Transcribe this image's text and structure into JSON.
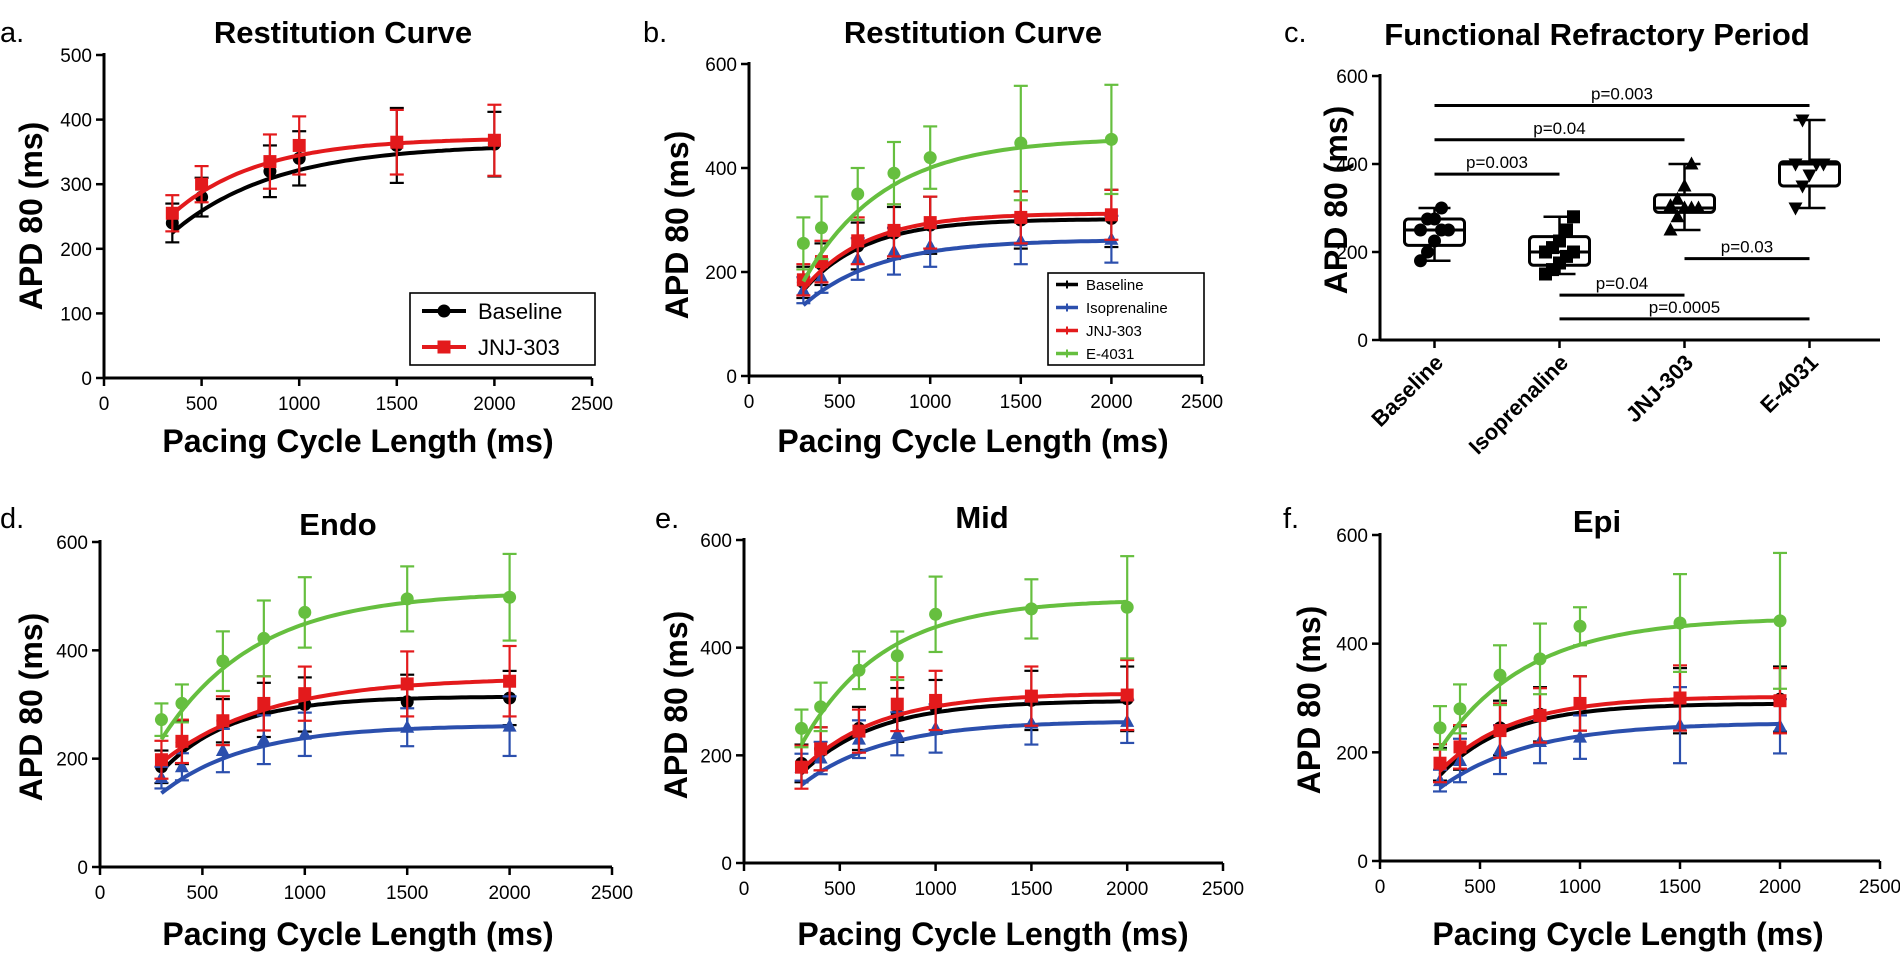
{
  "chart_data": [
    {
      "id": "a",
      "panel_label": "a.",
      "type": "line",
      "title": "Restitution Curve",
      "xlabel": "Pacing Cycle Length (ms)",
      "ylabel": "APD 80 (ms)",
      "xlim": [
        0,
        2500
      ],
      "ylim": [
        0,
        500
      ],
      "xticks": [
        0,
        500,
        1000,
        1500,
        2000,
        2500
      ],
      "yticks": [
        0,
        100,
        200,
        300,
        400,
        500
      ],
      "legend": "bottom-right",
      "series": [
        {
          "name": "Baseline",
          "color": "#000000",
          "marker": "circle",
          "x": [
            350,
            500,
            850,
            1000,
            1500,
            2000
          ],
          "y": [
            240,
            280,
            320,
            340,
            360,
            362
          ],
          "err": [
            30,
            30,
            40,
            42,
            58,
            50
          ],
          "fit": [
            362,
            266,
            0.00189
          ]
        },
        {
          "name": "JNJ-303",
          "color": "#e31a1c",
          "marker": "square",
          "x": [
            350,
            500,
            850,
            1000,
            1500,
            2000
          ],
          "y": [
            255,
            300,
            335,
            360,
            365,
            368
          ],
          "err": [
            28,
            28,
            42,
            45,
            50,
            55
          ],
          "fit": [
            372,
            261,
            0.00226
          ]
        }
      ]
    },
    {
      "id": "b",
      "panel_label": "b.",
      "type": "line",
      "title": "Restitution Curve",
      "xlabel": "Pacing Cycle Length (ms)",
      "ylabel": "APD 80 (ms)",
      "xlim": [
        0,
        2500
      ],
      "ylim": [
        0,
        600
      ],
      "xticks": [
        0,
        500,
        1000,
        1500,
        2000,
        2500
      ],
      "yticks": [
        0,
        200,
        400,
        600
      ],
      "legend": "bottom-right",
      "series": [
        {
          "name": "Baseline",
          "color": "#000000",
          "marker": "circle",
          "x": [
            300,
            400,
            600,
            800,
            1000,
            1500,
            2000
          ],
          "y": [
            180,
            215,
            250,
            275,
            290,
            300,
            303
          ],
          "err": [
            30,
            40,
            45,
            50,
            55,
            55,
            55
          ],
          "fit": [
            302,
            332,
            0.00294
          ]
        },
        {
          "name": "Isoprenaline",
          "color": "#2b4fad",
          "marker": "triangle",
          "x": [
            300,
            400,
            600,
            800,
            1000,
            1500,
            2000
          ],
          "y": [
            165,
            190,
            225,
            240,
            250,
            260,
            263
          ],
          "err": [
            25,
            30,
            40,
            45,
            40,
            45,
            45
          ],
          "fit": [
            262,
            261,
            0.00243
          ]
        },
        {
          "name": "JNJ-303",
          "color": "#e31a1c",
          "marker": "square",
          "x": [
            300,
            400,
            600,
            800,
            1000,
            1500,
            2000
          ],
          "y": [
            185,
            220,
            260,
            280,
            295,
            305,
            310
          ],
          "err": [
            30,
            40,
            45,
            50,
            50,
            50,
            48
          ],
          "fit": [
            313,
            350,
            0.0029
          ]
        },
        {
          "name": "E-4031",
          "color": "#66bf3f",
          "marker": "circle",
          "x": [
            300,
            400,
            600,
            800,
            1000,
            1500,
            2000
          ],
          "y": [
            255,
            285,
            350,
            390,
            420,
            448,
            455
          ],
          "err": [
            50,
            60,
            50,
            60,
            60,
            110,
            105
          ],
          "fit": [
            458,
            541,
            0.00224
          ]
        }
      ]
    },
    {
      "id": "c",
      "panel_label": "c.",
      "type": "box",
      "title": "Functional Refractory Period",
      "ylabel": "APD 80 (ms)",
      "ylim": [
        0,
        600
      ],
      "yticks": [
        0,
        200,
        400,
        600
      ],
      "categories": [
        "Baseline",
        "Isoprenaline",
        "JNJ-303",
        "E-4031"
      ],
      "boxes": [
        {
          "name": "Baseline",
          "min": 180,
          "q1": 215,
          "median": 250,
          "q3": 275,
          "max": 300,
          "points": [
            180,
            200,
            225,
            250,
            250,
            250,
            275,
            275,
            300
          ]
        },
        {
          "name": "Isoprenaline",
          "min": 150,
          "q1": 170,
          "median": 200,
          "q3": 235,
          "max": 280,
          "points": [
            150,
            160,
            175,
            190,
            200,
            200,
            210,
            225,
            250,
            280
          ]
        },
        {
          "name": "JNJ-303",
          "min": 250,
          "q1": 290,
          "median": 300,
          "q3": 330,
          "max": 400,
          "points": [
            250,
            280,
            300,
            300,
            300,
            305,
            320,
            350,
            400
          ]
        },
        {
          "name": "E-4031",
          "min": 300,
          "q1": 350,
          "median": 400,
          "q3": 405,
          "max": 500,
          "points": [
            300,
            350,
            375,
            400,
            400,
            400,
            500
          ]
        }
      ],
      "comparisons": [
        {
          "from": 0,
          "to": 3,
          "label": "p=0.003",
          "y": 533
        },
        {
          "from": 0,
          "to": 2,
          "label": "p=0.04",
          "y": 455
        },
        {
          "from": 0,
          "to": 1,
          "label": "p=0.003",
          "y": 377
        },
        {
          "from": 2,
          "to": 3,
          "label": "p=0.03",
          "y": 185
        },
        {
          "from": 1,
          "to": 2,
          "label": "p=0.04",
          "y": 102
        },
        {
          "from": 1,
          "to": 3,
          "label": "p=0.0005",
          "y": 48
        }
      ]
    },
    {
      "id": "d",
      "panel_label": "d.",
      "type": "line",
      "title": "Endo",
      "xlabel": "Pacing Cycle Length (ms)",
      "ylabel": "APD 80 (ms)",
      "xlim": [
        0,
        2500
      ],
      "ylim": [
        0,
        600
      ],
      "xticks": [
        0,
        500,
        1000,
        1500,
        2000,
        2500
      ],
      "yticks": [
        0,
        200,
        400,
        600
      ],
      "series": [
        {
          "name": "Baseline",
          "color": "#000000",
          "marker": "circle",
          "x": [
            300,
            400,
            600,
            800,
            1000,
            1500,
            2000
          ],
          "y": [
            185,
            230,
            270,
            290,
            300,
            305,
            312
          ],
          "err": [
            30,
            40,
            40,
            50,
            50,
            50,
            50
          ],
          "fit": [
            315,
            331,
            0.0029
          ]
        },
        {
          "name": "Isoprenaline",
          "color": "#2b4fad",
          "marker": "triangle",
          "x": [
            300,
            400,
            600,
            800,
            1000,
            1500,
            2000
          ],
          "y": [
            165,
            185,
            215,
            235,
            245,
            258,
            260
          ],
          "err": [
            20,
            25,
            40,
            45,
            40,
            35,
            55
          ],
          "fit": [
            262,
            256,
            0.00237
          ]
        },
        {
          "name": "JNJ-303",
          "color": "#e31a1c",
          "marker": "square",
          "x": [
            300,
            400,
            600,
            800,
            1000,
            1500,
            2000
          ],
          "y": [
            198,
            232,
            270,
            302,
            320,
            338,
            343
          ],
          "err": [
            35,
            40,
            45,
            50,
            50,
            60,
            65
          ],
          "fit": [
            350,
            281,
            0.00193
          ]
        },
        {
          "name": "E-4031",
          "color": "#66bf3f",
          "marker": "circle",
          "x": [
            300,
            400,
            600,
            800,
            1000,
            1500,
            2000
          ],
          "y": [
            272,
            302,
            380,
            422,
            470,
            495,
            498
          ],
          "err": [
            30,
            35,
            55,
            70,
            65,
            60,
            80
          ],
          "fit": [
            508,
            524,
            0.00218
          ]
        }
      ]
    },
    {
      "id": "e",
      "panel_label": "e.",
      "type": "line",
      "title": "Mid",
      "xlabel": "Pacing Cycle Length (ms)",
      "ylabel": "APD 80 (ms)",
      "xlim": [
        0,
        2500
      ],
      "ylim": [
        0,
        600
      ],
      "xticks": [
        0,
        500,
        1000,
        1500,
        2000,
        2500
      ],
      "yticks": [
        0,
        200,
        400,
        600
      ],
      "series": [
        {
          "name": "Baseline",
          "color": "#000000",
          "marker": "circle",
          "x": [
            300,
            400,
            600,
            800,
            1000,
            1500,
            2000
          ],
          "y": [
            185,
            212,
            250,
            275,
            290,
            302,
            305
          ],
          "err": [
            35,
            40,
            40,
            50,
            50,
            55,
            60
          ],
          "fit": [
            302,
            294,
            0.00258
          ]
        },
        {
          "name": "Isoprenaline",
          "color": "#2b4fad",
          "marker": "triangle",
          "x": [
            300,
            400,
            600,
            800,
            1000,
            1500,
            2000
          ],
          "y": [
            178,
            195,
            230,
            240,
            250,
            260,
            263
          ],
          "err": [
            25,
            30,
            35,
            40,
            45,
            40,
            40
          ],
          "fit": [
            264,
            239,
            0.00232
          ]
        },
        {
          "name": "JNJ-303",
          "color": "#e31a1c",
          "marker": "square",
          "x": [
            300,
            400,
            600,
            800,
            1000,
            1500,
            2000
          ],
          "y": [
            178,
            212,
            245,
            295,
            302,
            310,
            312
          ],
          "err": [
            40,
            40,
            40,
            50,
            55,
            55,
            65
          ],
          "fit": [
            316,
            300,
            0.00247
          ]
        },
        {
          "name": "E-4031",
          "color": "#66bf3f",
          "marker": "circle",
          "x": [
            300,
            400,
            600,
            800,
            1000,
            1500,
            2000
          ],
          "y": [
            250,
            290,
            358,
            385,
            462,
            472,
            475
          ],
          "err": [
            35,
            45,
            35,
            45,
            70,
            55,
            95
          ],
          "fit": [
            490,
            548,
            0.00236
          ]
        }
      ]
    },
    {
      "id": "f",
      "panel_label": "f.",
      "type": "line",
      "title": "Epi",
      "xlabel": "Pacing Cycle Length (ms)",
      "ylabel": "APD 80 (ms)",
      "xlim": [
        0,
        2500
      ],
      "ylim": [
        0,
        600
      ],
      "xticks": [
        0,
        500,
        1000,
        1500,
        2000,
        2500
      ],
      "yticks": [
        0,
        200,
        400,
        600
      ],
      "series": [
        {
          "name": "Baseline",
          "color": "#000000",
          "marker": "circle",
          "x": [
            300,
            400,
            600,
            800,
            1000,
            1500,
            2000
          ],
          "y": [
            178,
            208,
            245,
            270,
            290,
            295,
            298
          ],
          "err": [
            30,
            40,
            50,
            50,
            50,
            60,
            60
          ],
          "fit": [
            290,
            319,
            0.00294
          ]
        },
        {
          "name": "Isoprenaline",
          "color": "#2b4fad",
          "marker": "triangle",
          "x": [
            300,
            400,
            600,
            800,
            1000,
            1500,
            2000
          ],
          "y": [
            148,
            185,
            205,
            220,
            228,
            250,
            248
          ],
          "err": [
            20,
            40,
            45,
            40,
            40,
            70,
            50
          ],
          "fit": [
            255,
            235,
            0.00223
          ]
        },
        {
          "name": "JNJ-303",
          "color": "#e31a1c",
          "marker": "square",
          "x": [
            300,
            400,
            600,
            800,
            1000,
            1500,
            2000
          ],
          "y": [
            180,
            210,
            240,
            268,
            290,
            300,
            295
          ],
          "err": [
            35,
            40,
            50,
            50,
            50,
            60,
            60
          ],
          "fit": [
            303,
            314,
            0.00275
          ]
        },
        {
          "name": "E-4031",
          "color": "#66bf3f",
          "marker": "circle",
          "x": [
            300,
            400,
            600,
            800,
            1000,
            1500,
            2000
          ],
          "y": [
            245,
            280,
            342,
            372,
            432,
            438,
            442
          ],
          "err": [
            40,
            45,
            55,
            65,
            35,
            90,
            125
          ],
          "fit": [
            448,
            477,
            0.00226
          ]
        }
      ]
    }
  ]
}
